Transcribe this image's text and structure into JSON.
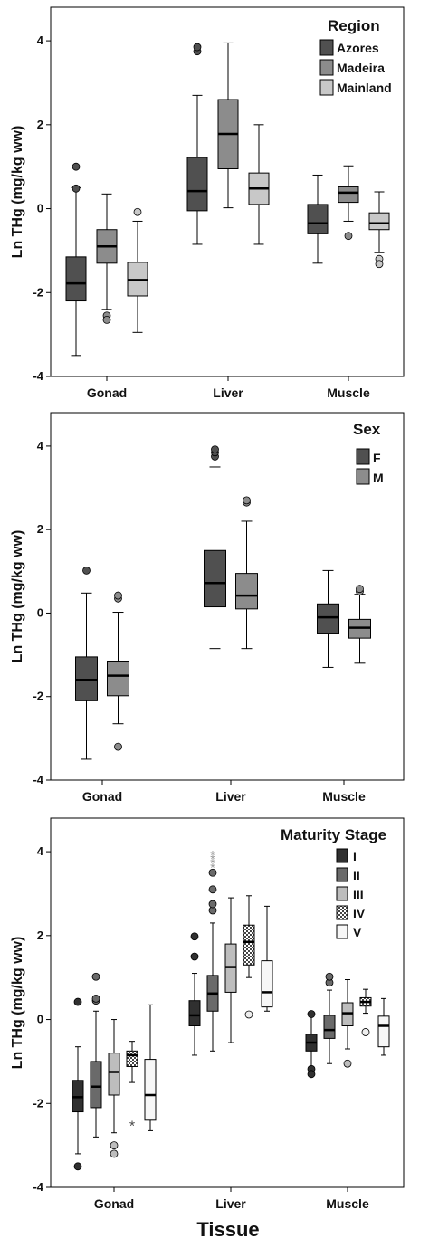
{
  "chart_data": [
    {
      "type": "box",
      "ylabel": "Ln THg (mg/kg ww)",
      "ylim": [
        -4,
        4.8
      ],
      "yticks": [
        -4,
        -2,
        0,
        2,
        4
      ],
      "categories": [
        "Gonad",
        "Liver",
        "Muscle"
      ],
      "legend": {
        "title": "Region",
        "position": "top-right"
      },
      "series": [
        {
          "name": "Azores",
          "color": "#505050",
          "pattern": "solid",
          "boxes": [
            {
              "category": "Gonad",
              "min": -3.5,
              "q1": -2.2,
              "median": -1.78,
              "q3": -1.15,
              "max": 0.5,
              "outliers": [
                1.0,
                0.48
              ]
            },
            {
              "category": "Liver",
              "min": -0.85,
              "q1": -0.05,
              "median": 0.42,
              "q3": 1.22,
              "max": 2.7,
              "outliers": [
                3.75,
                3.85
              ]
            },
            {
              "category": "Muscle",
              "min": -1.3,
              "q1": -0.6,
              "median": -0.35,
              "q3": 0.1,
              "max": 0.8,
              "outliers": []
            }
          ]
        },
        {
          "name": "Madeira",
          "color": "#8c8c8c",
          "pattern": "solid",
          "boxes": [
            {
              "category": "Gonad",
              "min": -2.4,
              "q1": -1.3,
              "median": -0.9,
              "q3": -0.5,
              "max": 0.35,
              "outliers": [
                -2.55,
                -2.65
              ]
            },
            {
              "category": "Liver",
              "min": 0.02,
              "q1": 0.95,
              "median": 1.78,
              "q3": 2.6,
              "max": 3.95,
              "outliers": []
            },
            {
              "category": "Muscle",
              "min": -0.3,
              "q1": 0.15,
              "median": 0.38,
              "q3": 0.52,
              "max": 1.02,
              "outliers": [
                -0.65
              ]
            }
          ]
        },
        {
          "name": "Mainland",
          "color": "#c8c8c8",
          "pattern": "solid",
          "boxes": [
            {
              "category": "Gonad",
              "min": -2.95,
              "q1": -2.08,
              "median": -1.7,
              "q3": -1.28,
              "max": -0.3,
              "outliers": [
                -0.08
              ]
            },
            {
              "category": "Liver",
              "min": -0.85,
              "q1": 0.1,
              "median": 0.48,
              "q3": 0.85,
              "max": 2.0,
              "outliers": []
            },
            {
              "category": "Muscle",
              "min": -1.05,
              "q1": -0.5,
              "median": -0.35,
              "q3": -0.1,
              "max": 0.4,
              "outliers": [
                -1.2,
                -1.32
              ]
            }
          ]
        }
      ]
    },
    {
      "type": "box",
      "ylabel": "Ln THg (mg/kg ww)",
      "ylim": [
        -4,
        4.8
      ],
      "yticks": [
        -4,
        -2,
        0,
        2,
        4
      ],
      "categories": [
        "Gonad",
        "Liver",
        "Muscle"
      ],
      "legend": {
        "title": "Sex",
        "position": "top-right"
      },
      "series": [
        {
          "name": "F",
          "color": "#505050",
          "pattern": "solid",
          "boxes": [
            {
              "category": "Gonad",
              "min": -3.5,
              "q1": -2.1,
              "median": -1.6,
              "q3": -1.05,
              "max": 0.48,
              "outliers": [
                1.02
              ]
            },
            {
              "category": "Liver",
              "min": -0.85,
              "q1": 0.15,
              "median": 0.72,
              "q3": 1.5,
              "max": 3.5,
              "outliers": [
                3.75,
                3.85,
                3.92
              ]
            },
            {
              "category": "Muscle",
              "min": -1.3,
              "q1": -0.48,
              "median": -0.1,
              "q3": 0.22,
              "max": 1.02,
              "outliers": []
            }
          ]
        },
        {
          "name": "M",
          "color": "#8c8c8c",
          "pattern": "solid",
          "boxes": [
            {
              "category": "Gonad",
              "min": -2.65,
              "q1": -1.98,
              "median": -1.5,
              "q3": -1.15,
              "max": 0.02,
              "outliers": [
                0.35,
                0.42,
                -3.2
              ]
            },
            {
              "category": "Liver",
              "min": -0.85,
              "q1": 0.1,
              "median": 0.42,
              "q3": 0.95,
              "max": 2.2,
              "outliers": [
                2.65,
                2.7
              ]
            },
            {
              "category": "Muscle",
              "min": -1.2,
              "q1": -0.6,
              "median": -0.35,
              "q3": -0.15,
              "max": 0.45,
              "outliers": [
                0.52,
                0.58
              ]
            }
          ]
        }
      ]
    },
    {
      "type": "box",
      "ylabel": "Ln THg (mg/kg ww)",
      "xlabel": "Tissue",
      "ylim": [
        -4,
        4.8
      ],
      "yticks": [
        -4,
        -2,
        0,
        2,
        4
      ],
      "categories": [
        "Gonad",
        "Liver",
        "Muscle"
      ],
      "legend": {
        "title": "Maturity Stage",
        "position": "top-right"
      },
      "series": [
        {
          "name": "I",
          "color": "#303030",
          "pattern": "solid",
          "boxes": [
            {
              "category": "Gonad",
              "min": -3.2,
              "q1": -2.2,
              "median": -1.85,
              "q3": -1.45,
              "max": -0.65,
              "outliers": [
                0.42,
                -3.5
              ]
            },
            {
              "category": "Liver",
              "min": -0.85,
              "q1": -0.15,
              "median": 0.1,
              "q3": 0.45,
              "max": 1.1,
              "outliers": [
                1.5,
                1.98
              ]
            },
            {
              "category": "Muscle",
              "min": -1.25,
              "q1": -0.75,
              "median": -0.55,
              "q3": -0.35,
              "max": 0.1,
              "outliers": [
                -1.18,
                -1.3,
                0.13
              ]
            }
          ]
        },
        {
          "name": "II",
          "color": "#6a6a6a",
          "pattern": "solid",
          "boxes": [
            {
              "category": "Gonad",
              "min": -2.8,
              "q1": -2.1,
              "median": -1.6,
              "q3": -1.0,
              "max": 0.2,
              "outliers": [
                0.45,
                0.5,
                1.02
              ]
            },
            {
              "category": "Liver",
              "min": -0.75,
              "q1": 0.2,
              "median": 0.62,
              "q3": 1.05,
              "max": 2.3,
              "outliers": [
                2.6,
                2.75,
                3.1,
                3.5
              ]
            },
            {
              "category": "Muscle",
              "min": -1.05,
              "q1": -0.45,
              "median": -0.25,
              "q3": 0.1,
              "max": 0.7,
              "outliers": [
                0.88,
                1.02
              ]
            }
          ]
        },
        {
          "name": "III",
          "color": "#bdbdbd",
          "pattern": "solid",
          "boxes": [
            {
              "category": "Gonad",
              "min": -2.7,
              "q1": -1.8,
              "median": -1.25,
              "q3": -0.8,
              "max": 0.0,
              "outliers": [
                -3.0,
                -3.2
              ]
            },
            {
              "category": "Liver",
              "min": -0.55,
              "q1": 0.65,
              "median": 1.25,
              "q3": 1.8,
              "max": 2.9,
              "outliers": []
            },
            {
              "category": "Muscle",
              "min": -0.7,
              "q1": -0.15,
              "median": 0.15,
              "q3": 0.4,
              "max": 0.95,
              "outliers": [
                -1.05
              ]
            }
          ]
        },
        {
          "name": "IV",
          "color": "#eeeeee",
          "pattern": "checker",
          "boxes": [
            {
              "category": "Gonad",
              "min": -1.5,
              "q1": -1.12,
              "median": -0.85,
              "q3": -0.75,
              "max": -0.52,
              "outliers": [],
              "extremes": [
                -2.52
              ]
            },
            {
              "category": "Liver",
              "min": 1.0,
              "q1": 1.3,
              "median": 1.85,
              "q3": 2.25,
              "max": 2.95,
              "outliers": [
                0.12
              ]
            },
            {
              "category": "Muscle",
              "min": 0.15,
              "q1": 0.32,
              "median": 0.42,
              "q3": 0.52,
              "max": 0.72,
              "outliers": [
                -0.3
              ]
            }
          ]
        },
        {
          "name": "V",
          "color": "#f7f7f7",
          "pattern": "solid",
          "boxes": [
            {
              "category": "Gonad",
              "min": -2.65,
              "q1": -2.4,
              "median": -1.8,
              "q3": -0.95,
              "max": 0.35,
              "outliers": []
            },
            {
              "category": "Liver",
              "min": 0.2,
              "q1": 0.3,
              "median": 0.65,
              "q3": 1.4,
              "max": 2.7,
              "outliers": []
            },
            {
              "category": "Muscle",
              "min": -0.85,
              "q1": -0.65,
              "median": -0.15,
              "q3": 0.08,
              "max": 0.5,
              "outliers": []
            }
          ]
        }
      ],
      "extra_marks": [
        {
          "series": "II",
          "category": "Liver",
          "kind": "extreme",
          "values": [
            3.65,
            3.75,
            3.85,
            3.95
          ],
          "color": "#999999"
        }
      ]
    }
  ]
}
